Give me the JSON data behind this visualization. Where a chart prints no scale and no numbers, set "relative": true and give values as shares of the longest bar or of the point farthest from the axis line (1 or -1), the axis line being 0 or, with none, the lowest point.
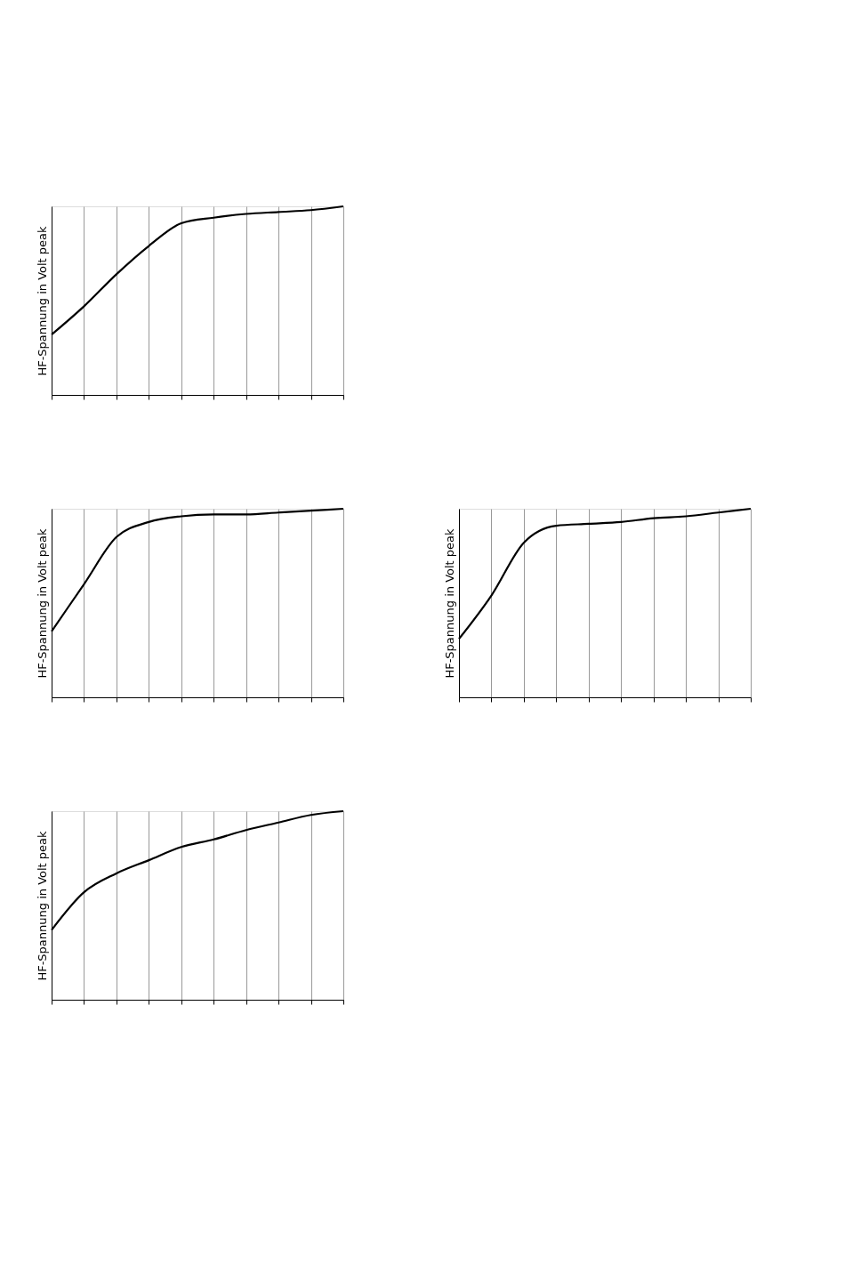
{
  "chart_data": [
    {
      "type": "line",
      "relative": true,
      "ylabel": "HF-Spannung in Volt peak",
      "grid": "x",
      "categories": [
        null,
        null,
        null,
        null,
        null,
        null,
        null,
        null,
        null,
        null
      ],
      "series": [
        {
          "color": "#000000",
          "values": [
            0.32,
            0.47,
            0.64,
            0.79,
            0.91,
            0.94,
            0.96,
            0.97,
            0.98,
            1.0
          ]
        }
      ]
    },
    {
      "type": "line",
      "relative": true,
      "ylabel": "HF-Spannung in Volt peak",
      "grid": "x",
      "categories": [
        null,
        null,
        null,
        null,
        null,
        null,
        null,
        null,
        null,
        null
      ],
      "series": [
        {
          "color": "#000000",
          "values": [
            0.35,
            0.6,
            0.85,
            0.93,
            0.96,
            0.97,
            0.97,
            0.98,
            0.99,
            1.0
          ]
        }
      ]
    },
    {
      "type": "line",
      "relative": true,
      "ylabel": "HF-Spannung in Volt peak",
      "grid": "x",
      "categories": [
        null,
        null,
        null,
        null,
        null,
        null,
        null,
        null,
        null,
        null
      ],
      "series": [
        {
          "color": "#000000",
          "values": [
            0.31,
            0.54,
            0.82,
            0.91,
            0.92,
            0.93,
            0.95,
            0.96,
            0.98,
            1.0
          ]
        }
      ]
    },
    {
      "type": "line",
      "relative": true,
      "ylabel": "HF-Spannung in Volt peak",
      "grid": "x",
      "categories": [
        null,
        null,
        null,
        null,
        null,
        null,
        null,
        null,
        null,
        null
      ],
      "series": [
        {
          "color": "#000000",
          "values": [
            0.37,
            0.57,
            0.67,
            0.74,
            0.81,
            0.85,
            0.9,
            0.94,
            0.98,
            1.0
          ]
        }
      ]
    }
  ]
}
